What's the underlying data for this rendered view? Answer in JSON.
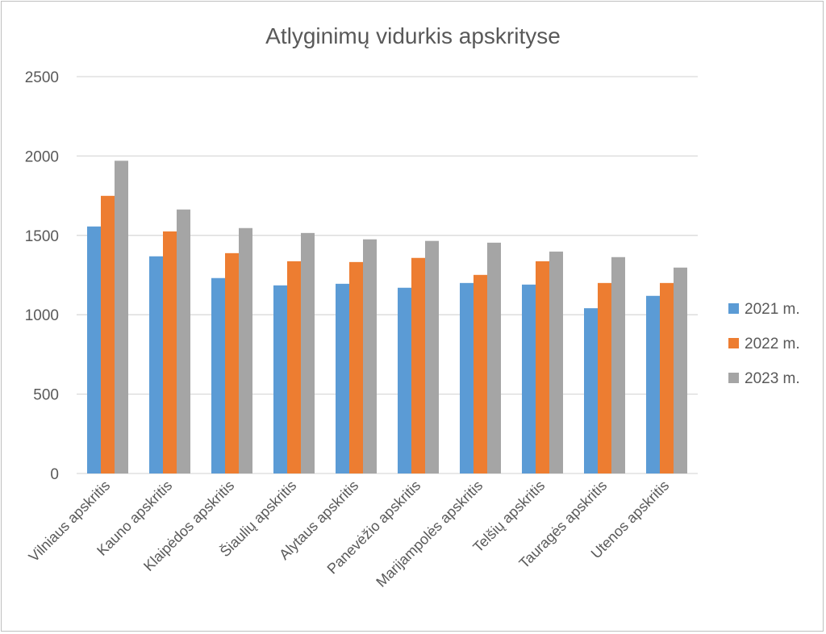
{
  "chart_data": {
    "type": "bar",
    "title": "Atlyginimų vidurkis apskrityse",
    "xlabel": "",
    "ylabel": "",
    "ylim": [
      0,
      2500
    ],
    "yticks": [
      0,
      500,
      1000,
      1500,
      2000,
      2500
    ],
    "grid": true,
    "legend_position": "right",
    "categories": [
      "Vilniaus apskritis",
      "Kauno apskritis",
      "Klaipėdos apskritis",
      "Šiaulių apskritis",
      "Alytaus apskritis",
      "Panevėžio apskritis",
      "Marijampolės apskritis",
      "Telšių apskritis",
      "Tauragės apskritis",
      "Utenos apskritis"
    ],
    "series": [
      {
        "name": "2021 m.",
        "color": "#5b9bd5",
        "values": [
          1556,
          1368,
          1231,
          1185,
          1195,
          1170,
          1200,
          1190,
          1041,
          1119
        ]
      },
      {
        "name": "2022 m.",
        "color": "#ed7d31",
        "values": [
          1749,
          1525,
          1388,
          1337,
          1332,
          1358,
          1251,
          1337,
          1200,
          1200
        ]
      },
      {
        "name": "2023 m.",
        "color": "#a5a5a5",
        "values": [
          1970,
          1663,
          1546,
          1515,
          1475,
          1465,
          1454,
          1398,
          1363,
          1297
        ]
      }
    ]
  }
}
